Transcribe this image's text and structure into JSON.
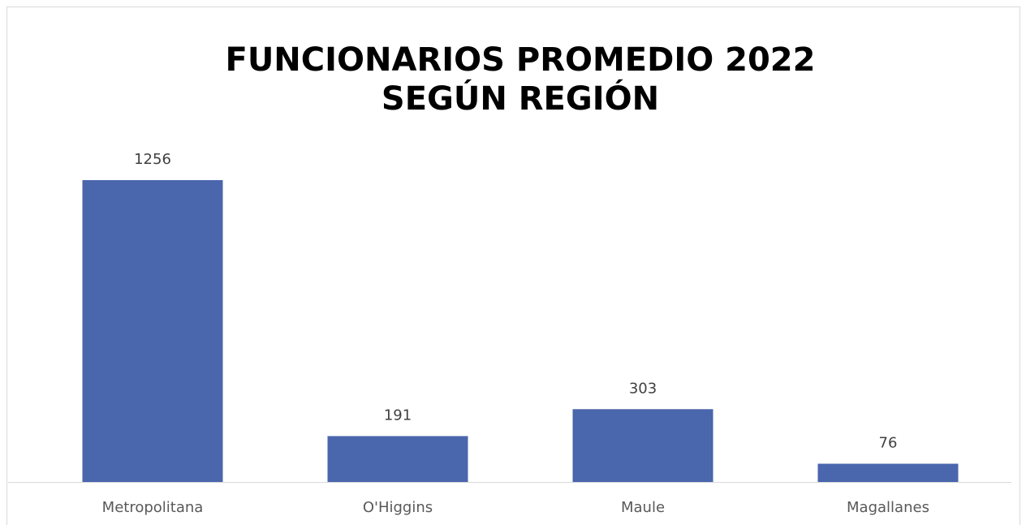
{
  "chart_data": {
    "type": "bar",
    "title": [
      "FUNCIONARIOS PROMEDIO 2022",
      "SEGÚN REGIÓN"
    ],
    "categories": [
      "Metropolitana",
      "O'Higgins",
      "Maule",
      "Magallanes"
    ],
    "values": [
      1256,
      191,
      303,
      76
    ],
    "color": "#4a66ac"
  }
}
